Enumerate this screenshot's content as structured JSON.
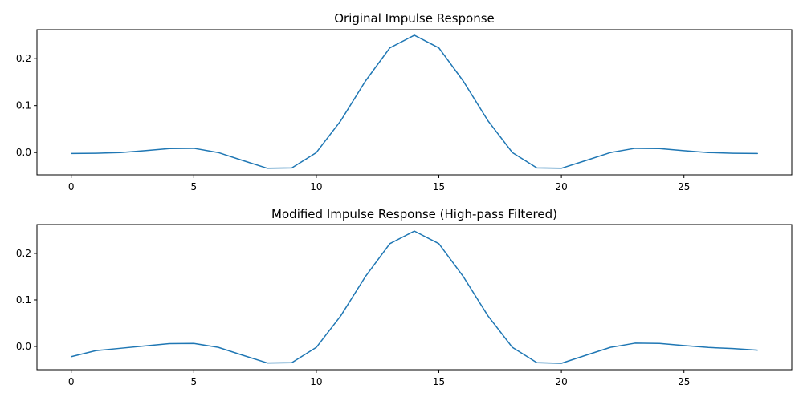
{
  "chart_data": [
    {
      "type": "line",
      "title": "Original Impulse Response",
      "xlabel": "",
      "ylabel": "",
      "xlim": [
        -1.4,
        29.4
      ],
      "ylim": [
        -0.0475,
        0.2618
      ],
      "xticks": [
        0,
        5,
        10,
        15,
        20,
        25
      ],
      "yticks": [
        0.0,
        0.1,
        0.2
      ],
      "xtick_labels": [
        "0",
        "5",
        "10",
        "15",
        "20",
        "25"
      ],
      "ytick_labels": [
        "0.0",
        "0.1",
        "0.2"
      ],
      "grid": false,
      "series": [
        {
          "color": "#1f77b4",
          "x": [
            0,
            1,
            2,
            3,
            4,
            5,
            6,
            7,
            8,
            9,
            10,
            11,
            12,
            13,
            14,
            15,
            16,
            17,
            18,
            19,
            20,
            21,
            22,
            23,
            24,
            25,
            26,
            27,
            28
          ],
          "y": [
            -0.002,
            -0.0015,
            0.0,
            0.004,
            0.0085,
            0.009,
            0.0,
            -0.017,
            -0.0335,
            -0.0328,
            0.0,
            0.068,
            0.152,
            0.223,
            0.25,
            0.223,
            0.152,
            0.068,
            0.0,
            -0.0328,
            -0.0335,
            -0.017,
            0.0,
            0.009,
            0.0085,
            0.004,
            0.0,
            -0.0015,
            -0.002
          ]
        }
      ]
    },
    {
      "type": "line",
      "title": "Modified Impulse Response (High-pass Filtered)",
      "xlabel": "",
      "ylabel": "",
      "xlim": [
        -1.4,
        29.4
      ],
      "ylim": [
        -0.05,
        0.262
      ],
      "xticks": [
        0,
        5,
        10,
        15,
        20,
        25
      ],
      "yticks": [
        0.0,
        0.1,
        0.2
      ],
      "xtick_labels": [
        "0",
        "5",
        "10",
        "15",
        "20",
        "25"
      ],
      "ytick_labels": [
        "0.0",
        "0.1",
        "0.2"
      ],
      "grid": false,
      "series": [
        {
          "color": "#1f77b4",
          "x": [
            0,
            1,
            2,
            3,
            4,
            5,
            6,
            7,
            8,
            9,
            10,
            11,
            12,
            13,
            14,
            15,
            16,
            17,
            18,
            19,
            20,
            21,
            22,
            23,
            24,
            25,
            26,
            27,
            28
          ],
          "y": [
            -0.022,
            -0.009,
            -0.004,
            0.001,
            0.006,
            0.0065,
            -0.002,
            -0.019,
            -0.0355,
            -0.035,
            -0.002,
            0.066,
            0.15,
            0.221,
            0.248,
            0.221,
            0.15,
            0.066,
            -0.002,
            -0.035,
            -0.0362,
            -0.019,
            -0.002,
            0.007,
            0.0065,
            0.002,
            -0.0022,
            -0.0045,
            -0.008
          ]
        }
      ]
    }
  ]
}
